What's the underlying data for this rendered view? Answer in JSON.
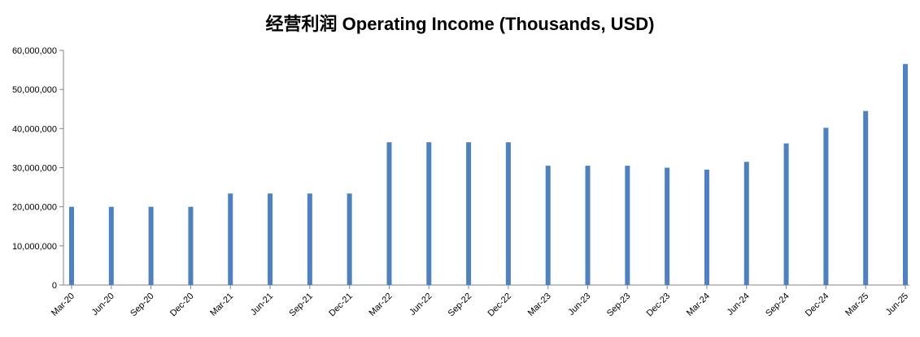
{
  "chart_data": {
    "type": "bar",
    "title": "经营利润 Operating Income (Thousands, USD)",
    "xlabel": "",
    "ylabel": "",
    "ylim": [
      0,
      60000000
    ],
    "yticks": [
      0,
      10000000,
      20000000,
      30000000,
      40000000,
      50000000,
      60000000
    ],
    "ytick_labels": [
      "0",
      "10,000,000",
      "20,000,000",
      "30,000,000",
      "40,000,000",
      "50,000,000",
      "60,000,000"
    ],
    "grid": false,
    "legend": "none",
    "categories": [
      "Mar-20",
      "Jun-20",
      "Sep-20",
      "Dec-20",
      "Mar-21",
      "Jun-21",
      "Sep-21",
      "Dec-21",
      "Mar-22",
      "Jun-22",
      "Sep-22",
      "Dec-22",
      "Mar-23",
      "Jun-23",
      "Sep-23",
      "Dec-23",
      "Mar-24",
      "Jun-24",
      "Sep-24",
      "Dec-24",
      "Mar-25",
      "Jun-25"
    ],
    "values": [
      20000000,
      20000000,
      20000000,
      20000000,
      23400000,
      23400000,
      23400000,
      23400000,
      36500000,
      36500000,
      36500000,
      36500000,
      30500000,
      30500000,
      30500000,
      30000000,
      29500000,
      31500000,
      36200000,
      40200000,
      44500000,
      56500000
    ],
    "colors": {
      "bar": "#4f81bd",
      "axis": "#868686",
      "text": "#000000"
    }
  }
}
